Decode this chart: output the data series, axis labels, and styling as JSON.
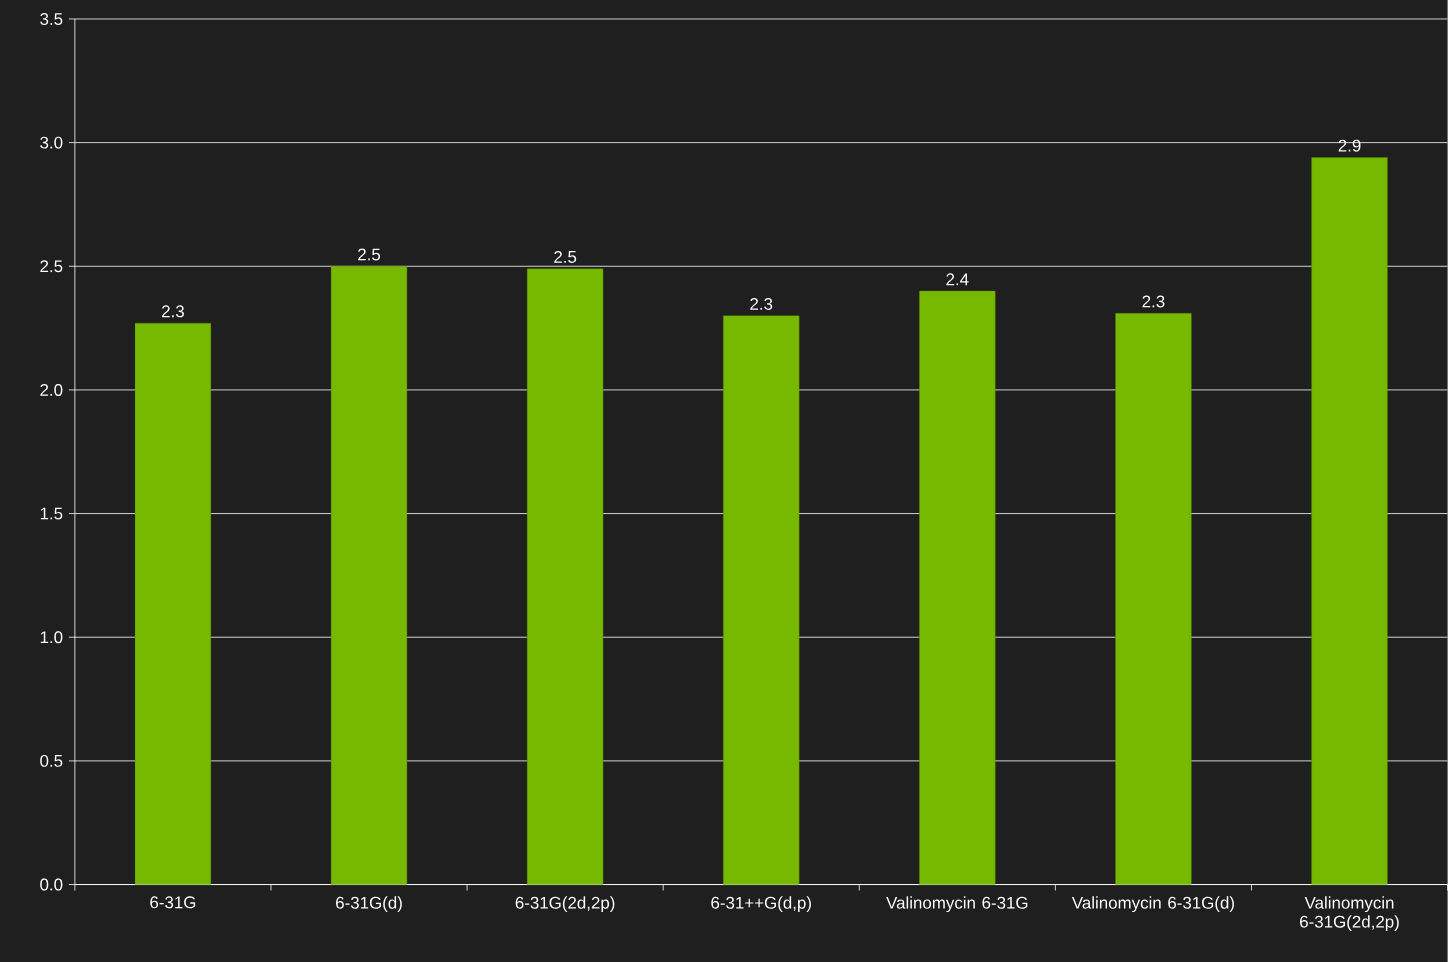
{
  "chart_data": {
    "type": "bar",
    "categories": [
      "6-31G",
      "6-31G(d)",
      "6-31G(2d,2p)",
      "6-31++G(d,p)",
      "Valinomycin 6-31G",
      "Valinomycin 6-31G(d)",
      "Valinomycin 6-31G(2d,2p)"
    ],
    "values": [
      2.27,
      2.5,
      2.49,
      2.3,
      2.4,
      2.31,
      2.94
    ],
    "value_labels": [
      "2.3",
      "2.5",
      "2.5",
      "2.3",
      "2.4",
      "2.3",
      "2.9"
    ],
    "color": "#76b900",
    "ylim": [
      0,
      3.5
    ],
    "yticks": [
      {
        "value": 0,
        "label": "0.0"
      },
      0.5,
      {
        "value": 1,
        "label": "1.0"
      },
      1.5,
      {
        "value": 2,
        "label": "2.0"
      },
      2.5,
      {
        "value": 3,
        "label": "3.0"
      },
      3.5
    ],
    "grid": "y"
  }
}
